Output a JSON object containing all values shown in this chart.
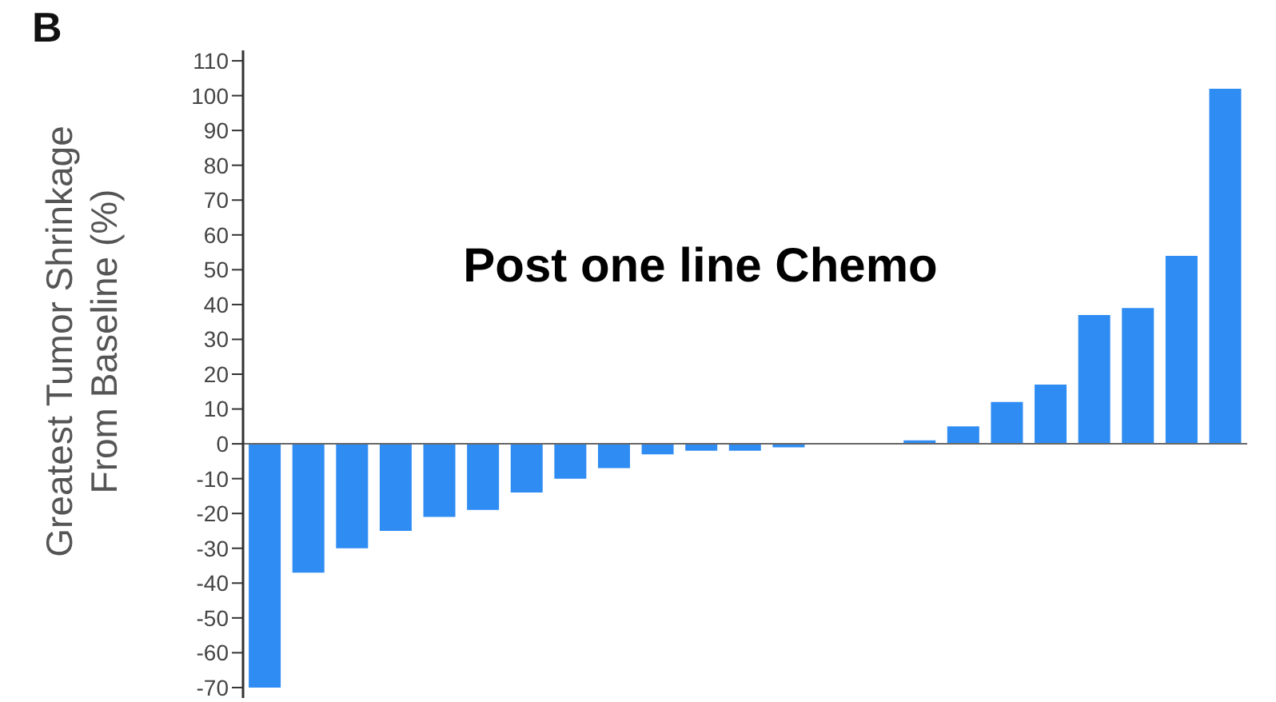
{
  "chart_data": {
    "type": "bar",
    "title": "Post one line Chemo",
    "ylabel": "Greatest Tumor Shrinkage\nFrom Baseline (%)",
    "annotations": [
      "B"
    ],
    "categories": [
      null,
      null,
      null,
      null,
      null,
      null,
      null,
      null,
      null,
      null,
      null,
      null,
      null,
      null,
      null,
      null,
      null,
      null,
      null,
      null,
      null,
      null,
      null
    ],
    "values": [
      -70,
      -37,
      -30,
      -25,
      -21,
      -19,
      -14,
      -10,
      -7,
      -3,
      -2,
      -2,
      -1,
      0,
      0,
      1,
      5,
      12,
      17,
      37,
      39,
      54,
      102
    ],
    "color": "#2f8cf3",
    "ylim": [
      -73,
      113
    ],
    "yticks": [
      -70,
      -60,
      -50,
      -40,
      -30,
      -20,
      -10,
      0,
      10,
      20,
      30,
      40,
      50,
      60,
      70,
      80,
      90,
      100,
      110
    ],
    "ref_lines": [
      {
        "axis": "y",
        "value": 0,
        "color": "#666666"
      }
    ],
    "grid": false,
    "legend": false,
    "tick_labels": "y"
  }
}
